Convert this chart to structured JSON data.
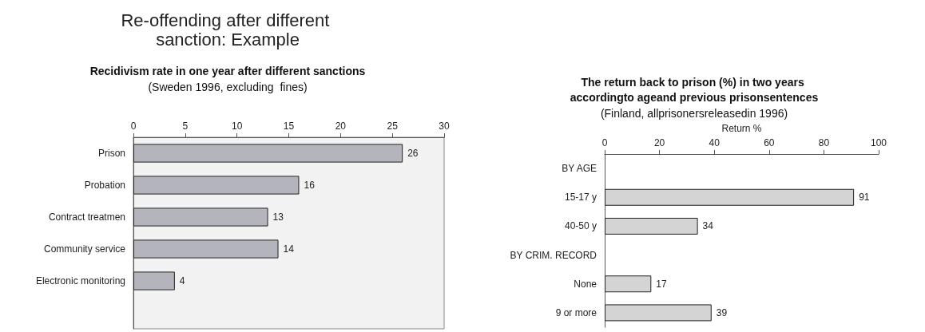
{
  "chart_data": [
    {
      "type": "other",
      "title": "Re-offending after different sanction: Example"
    },
    {
      "type": "bar",
      "orientation": "horizontal",
      "title": "Recidivism rate in one year after different sanctions",
      "subtitle": "(Sweden 1996, excluding  fines)",
      "categories": [
        "Prison",
        "Probation",
        "Contract treatmen",
        "Community service",
        "Electronic monitoring",
        null
      ],
      "series": [
        {
          "color": "#b4b4bc",
          "values": [
            26,
            16,
            13,
            14,
            4,
            null
          ]
        }
      ],
      "xlim": [
        0,
        30
      ],
      "xticks": [
        0,
        5,
        10,
        15,
        20,
        25,
        30
      ],
      "data_labels": true,
      "grid": false
    },
    {
      "type": "bar",
      "orientation": "horizontal",
      "title": "The return back to prison (%) in two years accordingto ageand previous prisonsentences",
      "subtitle": "(Finland, allprisonersreleasedin 1996)",
      "xlabel": "Return %",
      "categories": [
        "BY AGE",
        "15-17 y",
        "40-50 y",
        "BY CRIM. RECORD",
        "None",
        "9 or more"
      ],
      "series": [
        {
          "color": "#d4d4d4",
          "values": [
            null,
            91,
            34,
            null,
            17,
            39
          ]
        }
      ],
      "xlim": [
        0,
        100
      ],
      "xticks": [
        0,
        20,
        40,
        60,
        80,
        100
      ],
      "data_labels": true,
      "grid": false
    }
  ]
}
